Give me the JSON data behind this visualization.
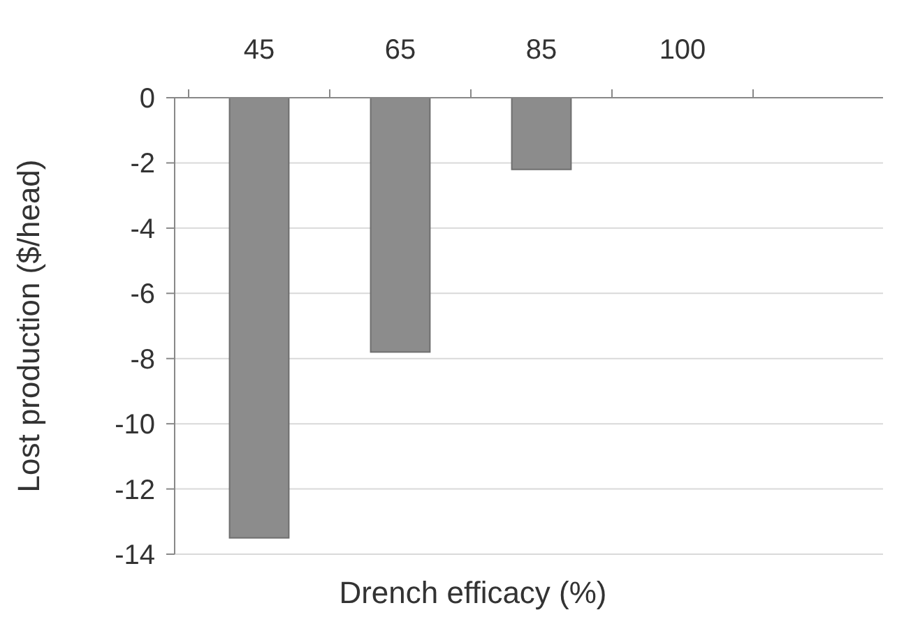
{
  "chart_data": {
    "type": "bar",
    "xlabel": "Drench efficacy (%)",
    "ylabel": "Lost production ($/head)",
    "categories": [
      "45",
      "65",
      "85",
      "100"
    ],
    "values": [
      -13.5,
      -7.8,
      -2.2,
      0
    ],
    "color": "#8c8c8c",
    "ylim": [
      -14,
      0
    ],
    "yticks": [
      0,
      -2,
      -4,
      -6,
      -8,
      -10,
      -12,
      -14
    ],
    "grid": "y"
  }
}
